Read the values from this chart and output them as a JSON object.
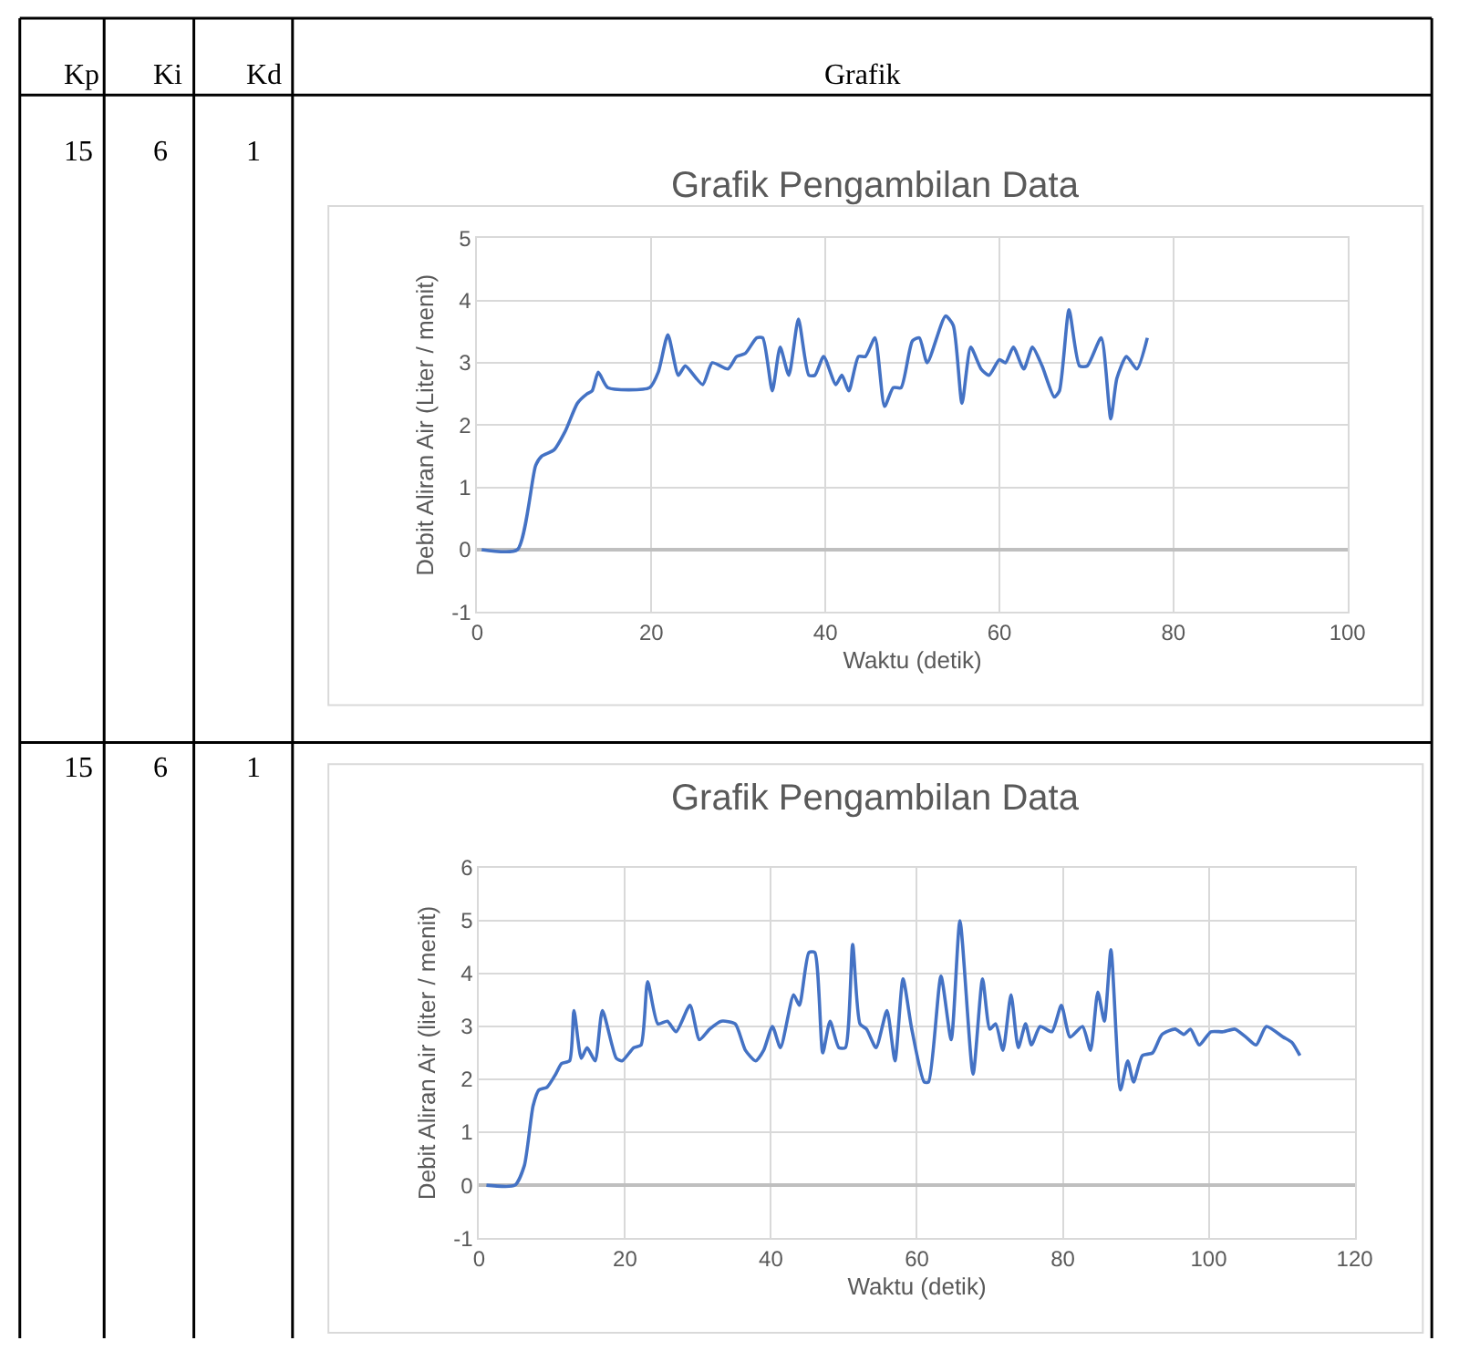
{
  "chart_data": [
    {
      "type": "other",
      "annotations": [
        "Kp",
        "Ki",
        "Kd",
        "Grafik",
        "15",
        "6",
        "1",
        "15",
        "6",
        "1"
      ]
    },
    {
      "type": "line",
      "title": "Grafik Pengambilan Data",
      "xlabel": "Waktu (detik)",
      "ylabel": "Debit Aliran Air (Liter / menit)",
      "xlim": [
        0,
        100
      ],
      "xticks": [
        0,
        20,
        40,
        60,
        80,
        100
      ],
      "ylim": [
        -1,
        5
      ],
      "yticks": [
        -1,
        0,
        1,
        2,
        3,
        4,
        5
      ],
      "grid": true,
      "marker": "none",
      "series": [
        {
          "color": "#4472c4",
          "x": [
            0.5,
            4.6,
            6.7,
            7.4,
            8.8,
            10.1,
            11.5,
            12.6,
            13.2,
            13.9,
            15,
            19.8,
            20.8,
            21.9,
            23.1,
            23.9,
            25.9,
            27,
            28.8,
            29.8,
            30.8,
            32.1,
            32.8,
            33.9,
            34.8,
            35.8,
            36.9,
            38.1,
            38.8,
            39.8,
            41.2,
            41.9,
            42.7,
            43.8,
            44.6,
            45.7,
            46.8,
            47.8,
            48.7,
            50,
            50.8,
            51.7,
            53.8,
            54.7,
            55.7,
            56.7,
            57.9,
            58.8,
            60,
            60.7,
            61.6,
            62.8,
            63.8,
            64.9,
            66.3,
            66.9,
            68,
            69.2,
            70.1,
            71.7,
            72.8,
            73.5,
            74.6,
            75.8,
            77
          ],
          "values": [
            0,
            0,
            1.35,
            1.5,
            1.6,
            1.9,
            2.35,
            2.5,
            2.55,
            2.85,
            2.6,
            2.6,
            2.85,
            3.45,
            2.8,
            2.95,
            2.65,
            3.0,
            2.9,
            3.1,
            3.15,
            3.4,
            3.4,
            2.55,
            3.25,
            2.8,
            3.7,
            2.8,
            2.8,
            3.1,
            2.65,
            2.8,
            2.55,
            3.1,
            3.1,
            3.4,
            2.3,
            2.6,
            2.6,
            3.35,
            3.4,
            3.0,
            3.75,
            3.6,
            2.35,
            3.25,
            2.9,
            2.8,
            3.05,
            3.0,
            3.25,
            2.9,
            3.25,
            2.95,
            2.45,
            2.55,
            3.85,
            2.95,
            2.95,
            3.4,
            2.1,
            2.75,
            3.1,
            2.9,
            3.4
          ]
        }
      ]
    },
    {
      "type": "line",
      "title": "Grafik Pengambilan Data",
      "xlabel": "Waktu (detik)",
      "ylabel": "Debit Aliran Air (liter / menit)",
      "xlim": [
        0,
        120
      ],
      "xticks": [
        0,
        20,
        40,
        60,
        80,
        100,
        120
      ],
      "ylim": [
        -1,
        6
      ],
      "yticks": [
        -1,
        0,
        1,
        2,
        3,
        4,
        5,
        6
      ],
      "grid": true,
      "marker": "none",
      "series": [
        {
          "color": "#4472c4",
          "x": [
            1,
            4.9,
            6.2,
            7.4,
            8.2,
            9.3,
            10.5,
            11.3,
            12.4,
            13,
            14,
            14.8,
            15.9,
            16.9,
            18.8,
            19.6,
            21.2,
            22.2,
            23.1,
            24.5,
            25.8,
            27,
            28.9,
            30.2,
            31.6,
            33.2,
            35.1,
            36.5,
            37.9,
            39,
            40.2,
            41.3,
            43.1,
            43.9,
            45.2,
            46,
            47.1,
            48.1,
            49.3,
            50.2,
            51.2,
            52.2,
            53.1,
            54.4,
            55.9,
            57,
            58.1,
            59.3,
            61,
            61.6,
            63.3,
            64.7,
            65.9,
            67.7,
            69,
            70,
            70.8,
            71.8,
            72.9,
            73.9,
            74.9,
            75.7,
            76.9,
            78.5,
            79.8,
            81,
            82.7,
            83.8,
            84.8,
            85.7,
            86.6,
            87.9,
            88.9,
            89.7,
            90.9,
            92.3,
            93.6,
            95.4,
            96.6,
            97.5,
            98.7,
            100.3,
            102,
            103.6,
            105.1,
            106.5,
            107.9,
            110.2,
            111.4,
            112.5
          ],
          "values": [
            0,
            0,
            0.37,
            1.5,
            1.8,
            1.85,
            2.1,
            2.3,
            2.35,
            3.3,
            2.4,
            2.6,
            2.35,
            3.3,
            2.4,
            2.35,
            2.6,
            2.65,
            3.85,
            3.05,
            3.1,
            2.9,
            3.4,
            2.75,
            2.95,
            3.1,
            3.05,
            2.55,
            2.35,
            2.55,
            3.0,
            2.6,
            3.6,
            3.4,
            4.4,
            4.4,
            2.5,
            3.1,
            2.6,
            2.6,
            4.55,
            3.05,
            2.95,
            2.6,
            3.3,
            2.35,
            3.9,
            2.95,
            1.95,
            1.95,
            3.95,
            2.75,
            5.0,
            2.1,
            3.9,
            2.95,
            3.05,
            2.55,
            3.6,
            2.6,
            3.05,
            2.65,
            3.0,
            2.9,
            3.4,
            2.8,
            3.0,
            2.55,
            3.65,
            3.1,
            4.45,
            1.8,
            2.35,
            1.95,
            2.45,
            2.5,
            2.85,
            2.95,
            2.85,
            2.95,
            2.65,
            2.9,
            2.9,
            2.95,
            2.8,
            2.65,
            3.0,
            2.8,
            2.7,
            2.45
          ]
        }
      ]
    }
  ]
}
